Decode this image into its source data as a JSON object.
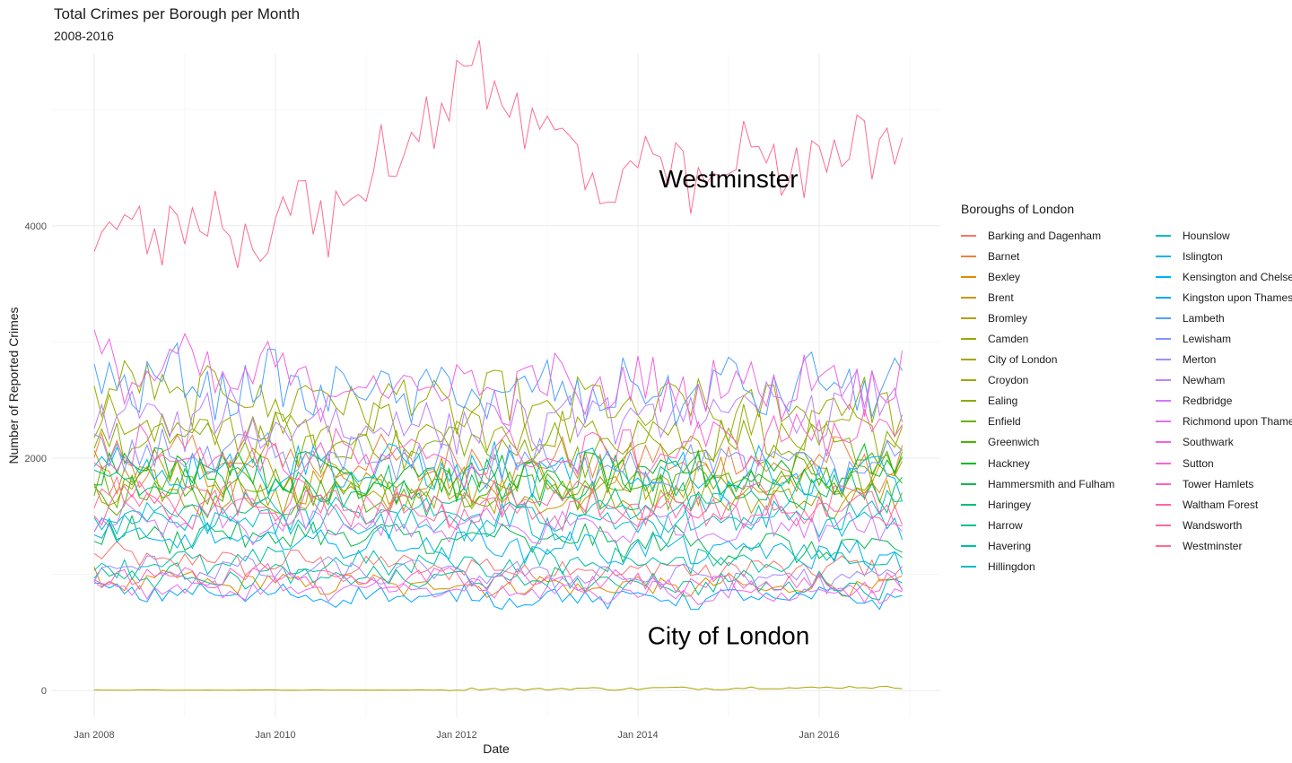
{
  "chart_data": {
    "type": "line",
    "title": "Total Crimes per Borough per Month",
    "subtitle": "2008-2016",
    "xlabel": "Date",
    "ylabel": "Number of Reported Crimes",
    "x_range": [
      "2008-01",
      "2016-12"
    ],
    "ylim": [
      -230,
      5480
    ],
    "x_ticks": [
      {
        "value": "2008-01",
        "label": "Jan 2008"
      },
      {
        "value": "2010-01",
        "label": "Jan 2010"
      },
      {
        "value": "2012-01",
        "label": "Jan 2012"
      },
      {
        "value": "2014-01",
        "label": "Jan 2014"
      },
      {
        "value": "2016-01",
        "label": "Jan 2016"
      }
    ],
    "y_ticks": [
      0,
      2000,
      4000
    ],
    "grid": true,
    "legend_position": "right",
    "legend_title": "Boroughs of London",
    "annotations": [
      {
        "text": "Westminster",
        "x": "2015-01",
        "y": 4400
      },
      {
        "text": "City of London",
        "x": "2015-01",
        "y": 470
      }
    ],
    "series": [
      {
        "name": "Barking and Dagenham",
        "color": "#F8766D",
        "base": 1050,
        "start": 1150,
        "end": 1050
      },
      {
        "name": "Barnet",
        "color": "#EC823C",
        "base": 1950,
        "start": 2000,
        "end": 1950
      },
      {
        "name": "Bexley",
        "color": "#DD8D00",
        "base": 900,
        "start": 950,
        "end": 900
      },
      {
        "name": "Brent",
        "color": "#CA9700",
        "base": 1800,
        "start": 1900,
        "end": 1800
      },
      {
        "name": "Bromley",
        "color": "#B3A000",
        "base": 1650,
        "start": 1700,
        "end": 1650
      },
      {
        "name": "Camden",
        "color": "#97A900",
        "base": 2450,
        "start": 2600,
        "end": 2400
      },
      {
        "name": "City of London",
        "color": "#A9A400",
        "base": 12,
        "start": 2,
        "end": 30
      },
      {
        "name": "Croydon",
        "color": "#9BA800",
        "base": 2200,
        "start": 2300,
        "end": 2250
      },
      {
        "name": "Ealing",
        "color": "#86AC00",
        "base": 2100,
        "start": 2150,
        "end": 2100
      },
      {
        "name": "Enfield",
        "color": "#6BB100",
        "base": 1750,
        "start": 1800,
        "end": 1850
      },
      {
        "name": "Greenwich",
        "color": "#4CB400",
        "base": 1750,
        "start": 1700,
        "end": 1900
      },
      {
        "name": "Hackney",
        "color": "#00B81F",
        "base": 1850,
        "start": 2000,
        "end": 1900
      },
      {
        "name": "Hammersmith and Fulham",
        "color": "#00BB4E",
        "base": 1300,
        "start": 1350,
        "end": 1200
      },
      {
        "name": "Haringey",
        "color": "#00BE70",
        "base": 1700,
        "start": 1800,
        "end": 1750
      },
      {
        "name": "Harrow",
        "color": "#00C08D",
        "base": 950,
        "start": 1000,
        "end": 900
      },
      {
        "name": "Havering",
        "color": "#00C0A7",
        "base": 1100,
        "start": 1100,
        "end": 1150
      },
      {
        "name": "Hillingdon",
        "color": "#00BFBE",
        "base": 1500,
        "start": 1550,
        "end": 1600
      },
      {
        "name": "Hounslow",
        "color": "#00BCD4",
        "base": 1450,
        "start": 1500,
        "end": 1450
      },
      {
        "name": "Islington",
        "color": "#00B7E8",
        "base": 1900,
        "start": 1950,
        "end": 1850
      },
      {
        "name": "Kensington and Chelsea",
        "color": "#00B1F8",
        "base": 1250,
        "start": 1300,
        "end": 1150
      },
      {
        "name": "Kingston upon Thames",
        "color": "#00A8FF",
        "base": 800,
        "start": 850,
        "end": 800
      },
      {
        "name": "Lambeth",
        "color": "#4DA1FF",
        "base": 2550,
        "start": 2700,
        "end": 2650
      },
      {
        "name": "Lewisham",
        "color": "#7F96FF",
        "base": 1950,
        "start": 2050,
        "end": 1950
      },
      {
        "name": "Merton",
        "color": "#A08BFF",
        "base": 1000,
        "start": 1050,
        "end": 950
      },
      {
        "name": "Newham",
        "color": "#BB80FF",
        "base": 2300,
        "start": 2350,
        "end": 2500
      },
      {
        "name": "Redbridge",
        "color": "#D376FF",
        "base": 1400,
        "start": 1450,
        "end": 1450
      },
      {
        "name": "Richmond upon Thames",
        "color": "#E66EF4",
        "base": 850,
        "start": 900,
        "end": 850
      },
      {
        "name": "Southwark",
        "color": "#F263E2",
        "base": 2600,
        "start": 2800,
        "end": 2700
      },
      {
        "name": "Sutton",
        "color": "#FC61D5",
        "base": 950,
        "start": 1000,
        "end": 900
      },
      {
        "name": "Tower Hamlets",
        "color": "#FF61C5",
        "base": 2000,
        "start": 2100,
        "end": 2300
      },
      {
        "name": "Waltham Forest",
        "color": "#FF65AE",
        "base": 1550,
        "start": 1600,
        "end": 1550
      },
      {
        "name": "Wandsworth",
        "color": "#FF6A98",
        "base": 1600,
        "start": 1650,
        "end": 1600
      },
      {
        "name": "Westminster",
        "color": "#FF6C91",
        "base": 4200,
        "start": 3960,
        "end": 4730,
        "peak": 5300
      }
    ]
  }
}
